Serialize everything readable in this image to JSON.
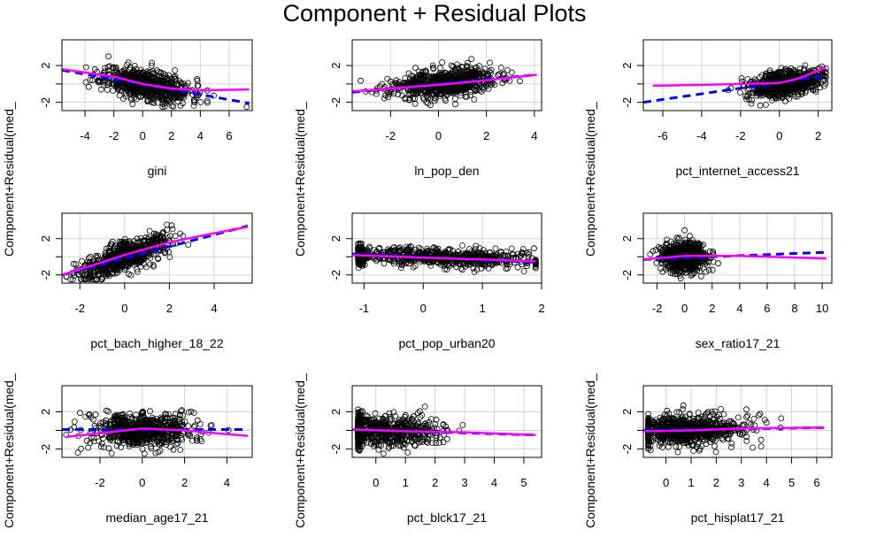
{
  "page_title": "Component + Residual Plots",
  "ylabel": "Component+Residual(med_",
  "colors": {
    "points": "#000000",
    "fit_line": "#0000ff",
    "smooth": "#ff00ff",
    "grid": "#d3d3d3"
  },
  "chart_data": [
    {
      "type": "scatter",
      "xlabel": "gini",
      "xlim": [
        -5.6,
        7.6
      ],
      "xticks": [
        -4,
        -2,
        0,
        2,
        4,
        6
      ],
      "ylim": [
        -2.9,
        4.8
      ],
      "yticks": [
        -2,
        0,
        2
      ],
      "yticklabels": [
        "-2",
        "",
        "2"
      ],
      "x_center": 0.3,
      "x_spread": 1.5,
      "x_range": [
        -4.9,
        7.4
      ],
      "slope": -0.28,
      "noise": 0.8,
      "n": 700,
      "smooth": [
        [
          -5.6,
          1.6
        ],
        [
          -2,
          0.8
        ],
        [
          0,
          0.0
        ],
        [
          2,
          -0.5
        ],
        [
          4,
          -0.7
        ],
        [
          7.4,
          -0.6
        ]
      ],
      "fit": [
        [
          -5.6,
          1.5
        ],
        [
          7.4,
          -2.1
        ]
      ],
      "seed": 11
    },
    {
      "type": "scatter",
      "xlabel": "ln_pop_den",
      "xlim": [
        -3.6,
        4.3
      ],
      "xticks": [
        -2,
        0,
        2,
        4
      ],
      "ylim": [
        -2.9,
        4.8
      ],
      "yticks": [
        -2,
        0,
        2
      ],
      "yticklabels": [
        "-2",
        "",
        "2"
      ],
      "x_center": 0.2,
      "x_spread": 1.1,
      "x_range": [
        -3.4,
        4.1
      ],
      "slope": 0.25,
      "noise": 0.75,
      "n": 700,
      "smooth": [
        [
          -3.6,
          -0.8
        ],
        [
          -2,
          -0.5
        ],
        [
          0,
          -0.1
        ],
        [
          2,
          0.4
        ],
        [
          4.1,
          1.0
        ]
      ],
      "fit": [
        [
          -3.6,
          -0.9
        ],
        [
          4.1,
          1.0
        ]
      ],
      "seed": 23
    },
    {
      "type": "scatter",
      "xlabel": "pct_internet_access21",
      "xlim": [
        -7.0,
        2.7
      ],
      "xticks": [
        -6,
        -4,
        -2,
        0,
        2
      ],
      "ylim": [
        -2.9,
        4.8
      ],
      "yticks": [
        -2,
        0,
        2
      ],
      "yticklabels": [
        "-2",
        "",
        "2"
      ],
      "x_center": 0.3,
      "x_spread": 0.9,
      "x_range": [
        -6.5,
        2.4
      ],
      "slope": 0.3,
      "noise": 0.7,
      "n": 700,
      "smooth": [
        [
          -6.5,
          -0.2
        ],
        [
          -4,
          -0.1
        ],
        [
          -2,
          0.0
        ],
        [
          0,
          0.1
        ],
        [
          1,
          0.6
        ],
        [
          2.4,
          1.8
        ]
      ],
      "fit": [
        [
          -7.0,
          -2.0
        ],
        [
          2.4,
          0.9
        ]
      ],
      "seed": 37
    },
    {
      "type": "scatter",
      "xlabel": "pct_bach_higher_18_22",
      "xlim": [
        -2.8,
        5.7
      ],
      "xticks": [
        -2,
        0,
        2,
        4
      ],
      "ylim": [
        -2.9,
        4.8
      ],
      "yticks": [
        -2,
        0,
        2
      ],
      "yticklabels": [
        "-2",
        "",
        "2"
      ],
      "x_center": 0.0,
      "x_spread": 1.0,
      "x_range": [
        -2.6,
        5.5
      ],
      "slope": 0.9,
      "noise": 0.8,
      "n": 700,
      "smooth": [
        [
          -2.8,
          -2.0
        ],
        [
          -1,
          -0.6
        ],
        [
          0,
          0.2
        ],
        [
          2,
          1.6
        ],
        [
          4,
          2.6
        ],
        [
          5.5,
          3.3
        ]
      ],
      "fit": [
        [
          -2.8,
          -2.0
        ],
        [
          5.5,
          3.4
        ]
      ],
      "seed": 41
    },
    {
      "type": "scatter",
      "xlabel": "pct_pop_urban20",
      "xlim": [
        -1.2,
        2.0
      ],
      "xticks": [
        -1.0,
        0.0,
        1.0,
        2.0
      ],
      "ylim": [
        -2.9,
        4.8
      ],
      "yticks": [
        -2,
        0,
        2
      ],
      "yticklabels": [
        "-2",
        "",
        "2"
      ],
      "x_center": 0.4,
      "x_spread": 0.8,
      "x_range": [
        -1.1,
        1.9
      ],
      "slope": -0.2,
      "noise": 0.5,
      "n": 900,
      "smooth": [
        [
          -1.2,
          0.2
        ],
        [
          0,
          -0.1
        ],
        [
          1,
          -0.3
        ],
        [
          1.9,
          -0.5
        ]
      ],
      "fit": [
        [
          -1.2,
          0.3
        ],
        [
          1.9,
          -0.6
        ]
      ],
      "seed": 53,
      "edge_cluster": true
    },
    {
      "type": "scatter",
      "xlabel": "sex_ratio17_21",
      "xlim": [
        -3.0,
        10.7
      ],
      "xticks": [
        -2,
        0,
        2,
        4,
        6,
        8,
        10
      ],
      "ylim": [
        -2.9,
        4.8
      ],
      "yticks": [
        -2,
        0,
        2
      ],
      "yticklabels": [
        "-2",
        "",
        "2"
      ],
      "x_center": 0.0,
      "x_spread": 0.8,
      "x_range": [
        -2.5,
        10.3
      ],
      "slope": 0.05,
      "noise": 0.8,
      "n": 700,
      "smooth": [
        [
          -3,
          -0.3
        ],
        [
          0,
          0.1
        ],
        [
          4,
          0.1
        ],
        [
          10.3,
          -0.2
        ]
      ],
      "fit": [
        [
          -3,
          -0.3
        ],
        [
          10.3,
          0.5
        ]
      ],
      "seed": 61
    },
    {
      "type": "scatter",
      "xlabel": "median_age17_21",
      "xlim": [
        -3.8,
        5.2
      ],
      "xticks": [
        -2,
        0,
        2,
        4
      ],
      "ylim": [
        -2.9,
        4.8
      ],
      "yticks": [
        -2,
        0,
        2
      ],
      "yticklabels": [
        "-2",
        "",
        "2"
      ],
      "x_center": 0.0,
      "x_spread": 1.2,
      "x_range": [
        -3.6,
        5.0
      ],
      "slope": 0.0,
      "noise": 0.9,
      "n": 700,
      "smooth": [
        [
          -3.6,
          -0.7
        ],
        [
          -2,
          -0.3
        ],
        [
          0,
          0.2
        ],
        [
          2,
          0.0
        ],
        [
          5,
          -0.6
        ]
      ],
      "fit": [
        [
          -3.8,
          0.1
        ],
        [
          5,
          0.1
        ]
      ],
      "seed": 71
    },
    {
      "type": "scatter",
      "xlabel": "pct_blck17_21",
      "xlim": [
        -0.8,
        5.6
      ],
      "xticks": [
        0,
        1,
        2,
        3,
        4,
        5
      ],
      "ylim": [
        -2.9,
        4.8
      ],
      "yticks": [
        -2,
        0,
        2
      ],
      "yticklabels": [
        "-2",
        "",
        "2"
      ],
      "x_center": 0.3,
      "x_spread": 1.0,
      "x_range": [
        -0.6,
        5.4
      ],
      "slope": -0.1,
      "noise": 0.8,
      "n": 800,
      "smooth": [
        [
          -0.8,
          0.1
        ],
        [
          1,
          -0.1
        ],
        [
          3,
          -0.2
        ],
        [
          5.4,
          -0.5
        ]
      ],
      "fit": [
        [
          -0.8,
          0.1
        ],
        [
          5.4,
          -0.5
        ]
      ],
      "seed": 83,
      "edge_cluster": true
    },
    {
      "type": "scatter",
      "xlabel": "pct_hisplat17_21",
      "xlim": [
        -0.9,
        6.6
      ],
      "xticks": [
        0,
        1,
        2,
        3,
        4,
        5,
        6
      ],
      "ylim": [
        -2.9,
        4.8
      ],
      "yticks": [
        -2,
        0,
        2
      ],
      "yticklabels": [
        "-2",
        "",
        "2"
      ],
      "x_center": 0.6,
      "x_spread": 1.3,
      "x_range": [
        -0.7,
        6.3
      ],
      "slope": 0.05,
      "noise": 0.8,
      "n": 800,
      "smooth": [
        [
          -0.9,
          -0.1
        ],
        [
          1,
          0.0
        ],
        [
          3,
          0.2
        ],
        [
          6.3,
          0.3
        ]
      ],
      "fit": [
        [
          -0.9,
          0.0
        ],
        [
          6.3,
          0.3
        ]
      ],
      "seed": 97
    }
  ]
}
